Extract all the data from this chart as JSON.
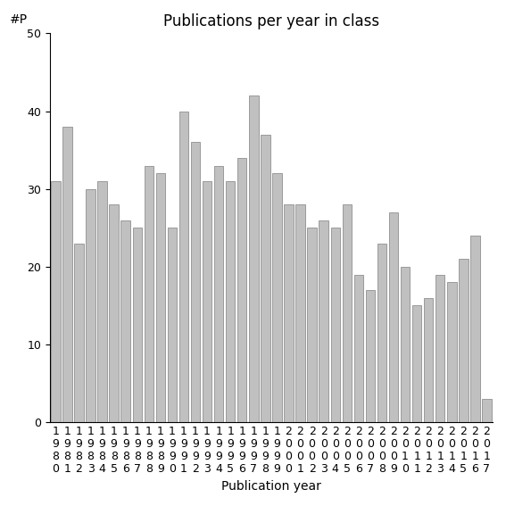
{
  "years": [
    1980,
    1981,
    1982,
    1983,
    1984,
    1985,
    1986,
    1987,
    1988,
    1989,
    1990,
    1991,
    1992,
    1993,
    1994,
    1995,
    1996,
    1997,
    1998,
    1999,
    2000,
    2001,
    2002,
    2003,
    2004,
    2005,
    2006,
    2007,
    2008,
    2009,
    2010,
    2011,
    2012,
    2013,
    2014,
    2015,
    2016,
    2017
  ],
  "values": [
    31,
    38,
    23,
    30,
    31,
    28,
    26,
    25,
    33,
    32,
    25,
    40,
    36,
    31,
    33,
    31,
    34,
    42,
    37,
    32,
    28,
    28,
    25,
    26,
    25,
    28,
    19,
    17,
    23,
    27,
    20,
    15,
    16,
    19,
    18,
    21,
    24,
    3
  ],
  "bar_color": "#c0c0c0",
  "bar_edgecolor": "#808080",
  "title": "Publications per year in class",
  "xlabel": "Publication year",
  "ylabel": "#P",
  "ylim": [
    0,
    50
  ],
  "yticks": [
    0,
    10,
    20,
    30,
    40,
    50
  ],
  "background_color": "#ffffff",
  "title_fontsize": 12,
  "label_fontsize": 10,
  "tick_fontsize": 9
}
